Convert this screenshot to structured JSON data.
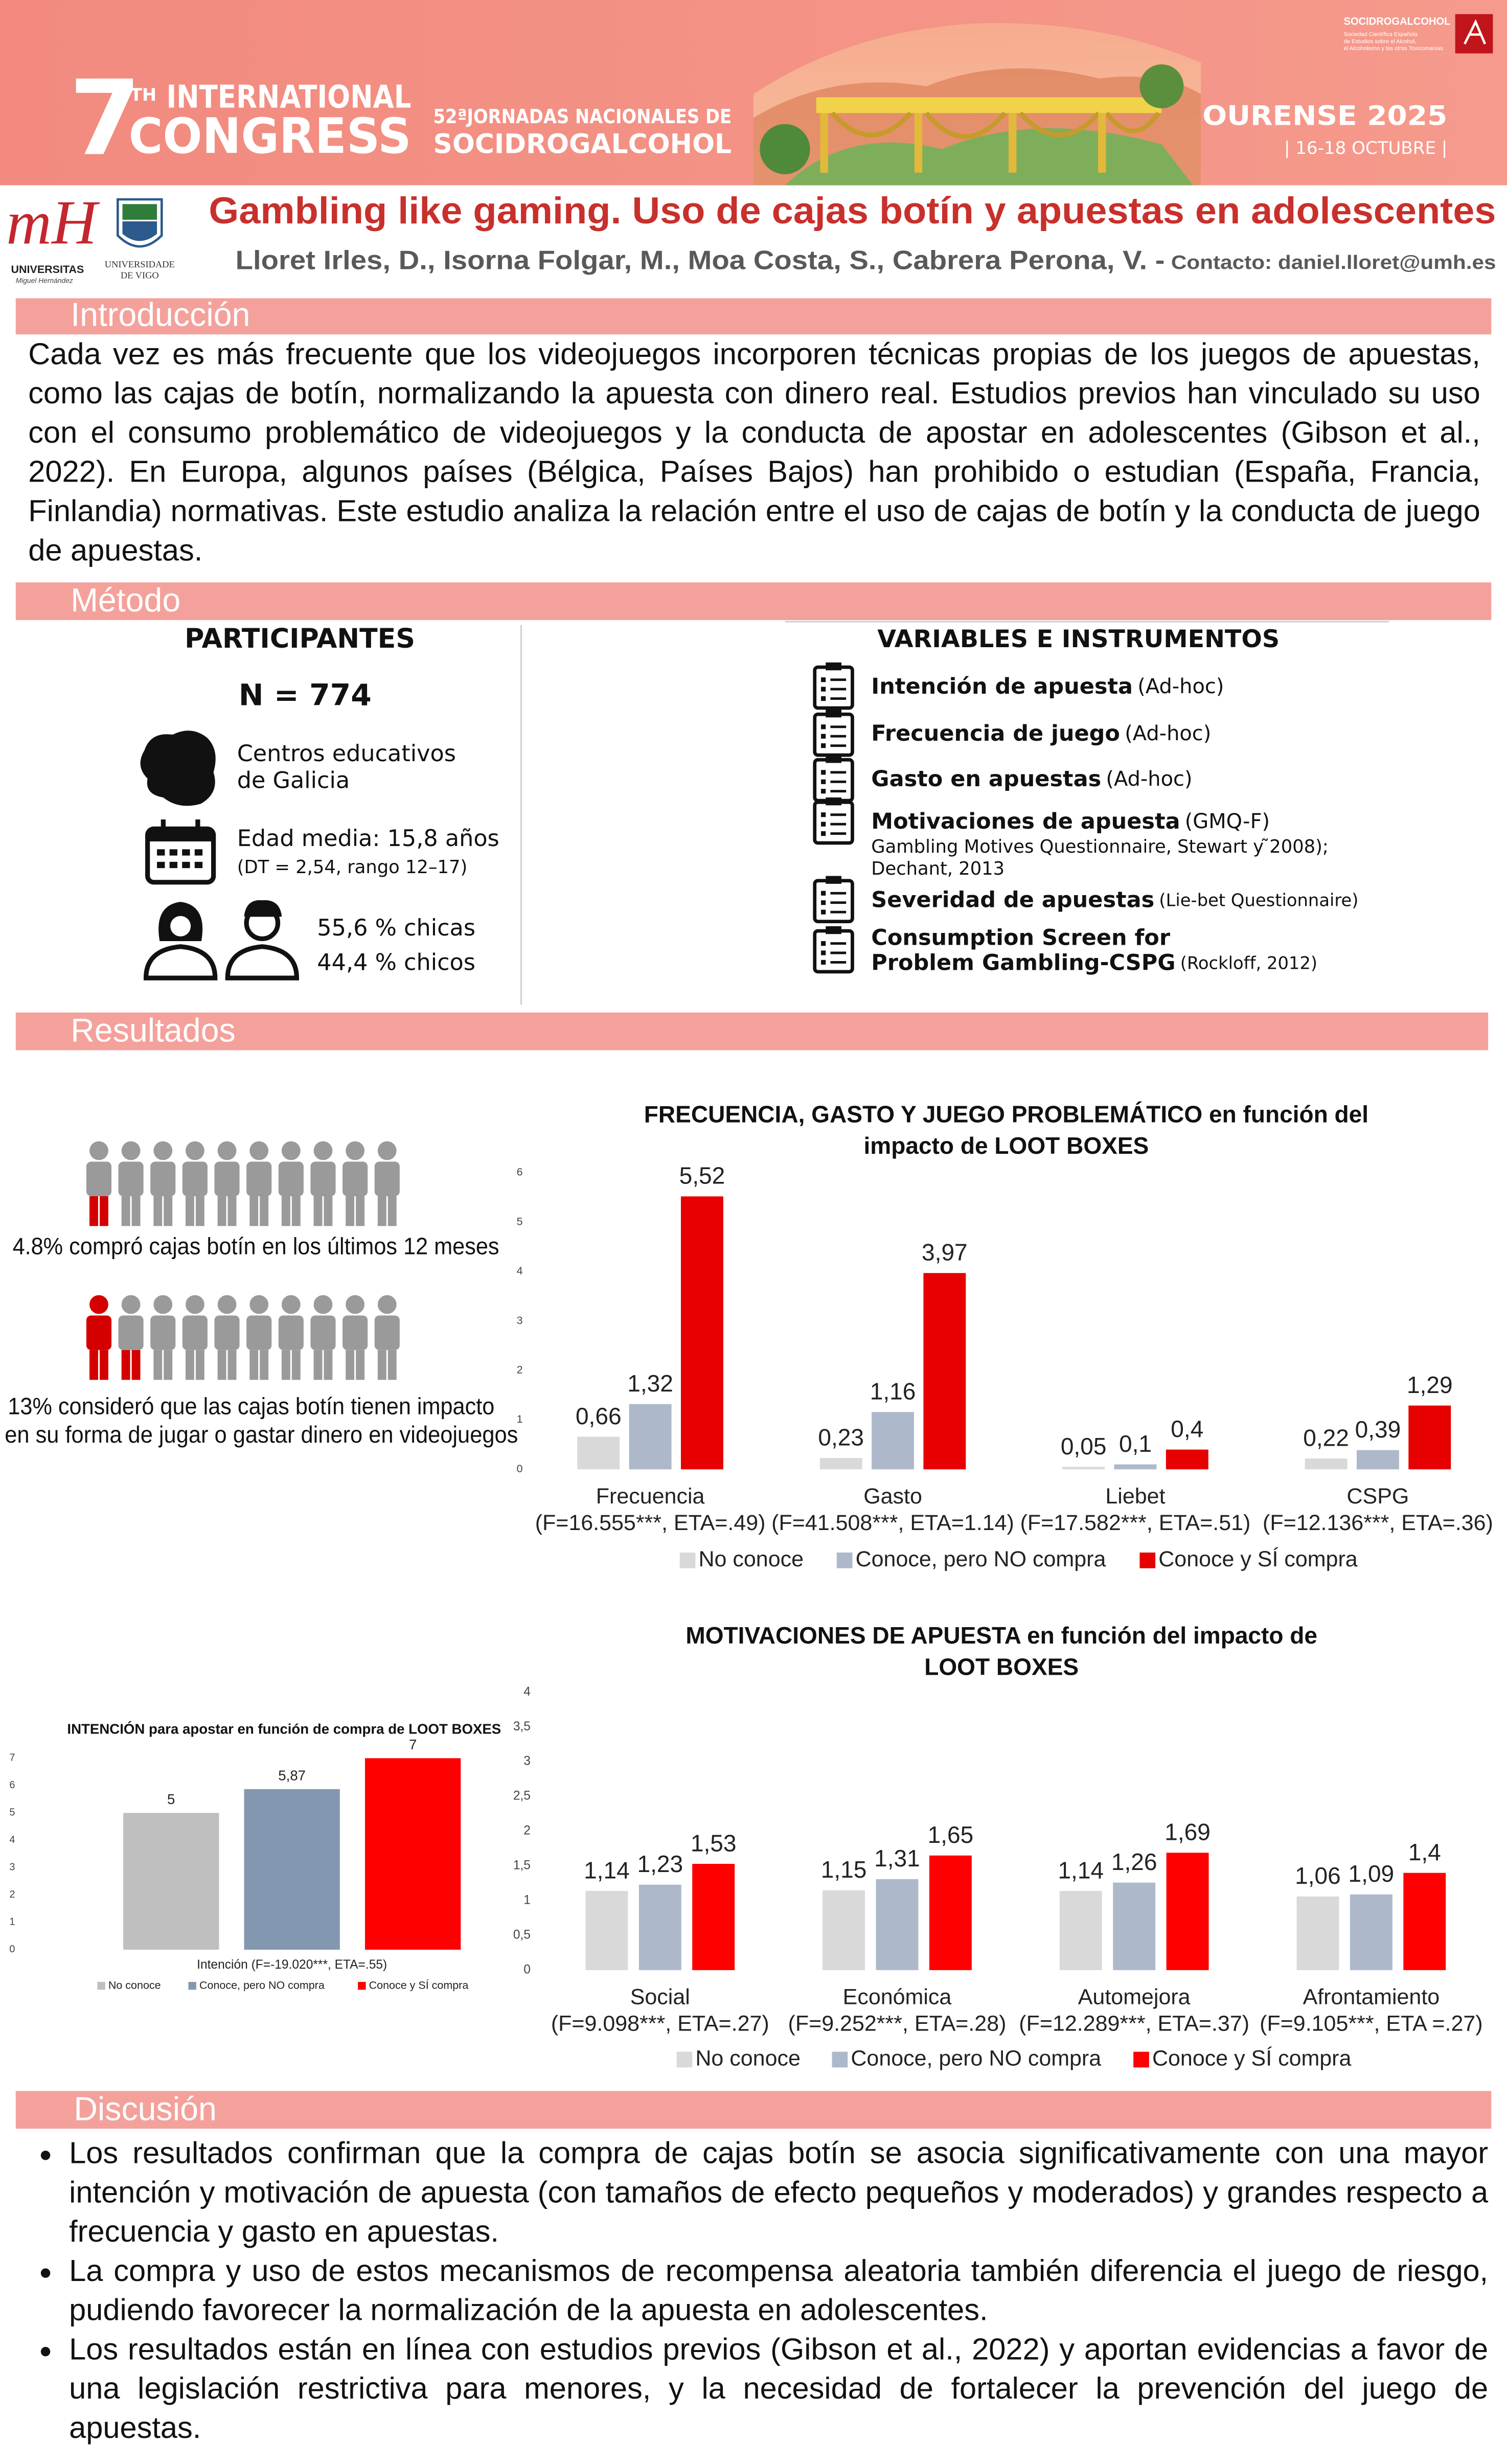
{
  "header": {
    "number": "7",
    "ordinal": "TH",
    "line1": "INTERNATIONAL",
    "line2": "CONGRESS",
    "jornadas": "52ªJORNADAS NACIONALES DE",
    "society": "SOCIDROGALCOHOL",
    "city": "OURENSE 2025",
    "dates": "| 16-18 OCTUBRE |",
    "logo_name": "SOCIDROGALCOHOL",
    "logo_text": [
      "Sociedad Científica Española",
      "de Estudios sobre el Alcohol,",
      "el Alcoholismo y las otras Toxicomanías"
    ]
  },
  "logos": {
    "umh_mark": "mH",
    "umh_name": "UNIVERSITAS",
    "umh_sub": "Miguel Hernández",
    "vigo_1": "UNIVERSIDADE",
    "vigo_2": "DE VIGO"
  },
  "title": "Gambling like gaming.  Uso de cajas botín y apuestas en adolescentes",
  "authors": "Lloret Irles, D., Isorna Folgar, M., Moa Costa, S.,  Cabrera Perona, V. -",
  "contact": "Contacto: daniel.lloret@umh.es",
  "sections": {
    "introduction": "Introducción",
    "method": "Método",
    "results": "Resultados",
    "discussion": "Discusión"
  },
  "introduction": "Cada vez es más frecuente que los videojuegos incorporen técnicas propias de los juegos de apuestas, como las cajas de botín, normalizando la apuesta con dinero real. Estudios previos han vinculado su uso con el consumo problemático de videojuegos y la conducta de apostar en adolescentes (Gibson et al., 2022). En Europa, algunos países (Bélgica, Países Bajos) han prohibido o estudian (España, Francia, Finlandia) normativas. Este estudio analiza la relación entre el uso de cajas de botín y la conducta de juego de apuestas.",
  "participants": {
    "heading": "PARTICIPANTES",
    "n": "N = 774",
    "centers": [
      "Centros educativos",
      "de Galicia"
    ],
    "age": "Edad media: 15,8 años",
    "age_detail": "(DT = 2,54, rango 12–17)",
    "girls": "55,6 % chicas",
    "boys": "44,4 % chicos"
  },
  "variables": {
    "heading": "VARIABLES E INSTRUMENTOS",
    "items": [
      {
        "name": "Intención de apuesta",
        "source": "(Ad-hoc)"
      },
      {
        "name": "Frecuencia de juego",
        "source": "(Ad-hoc)"
      },
      {
        "name": "Gasto en apuestas",
        "source": "(Ad-hoc)"
      },
      {
        "name": "Motivaciones de apuesta",
        "source": "(GMQ-F)",
        "detail": [
          "Gambling Motives Questionnaire, Stewart y  ̃2008);",
          "Dechant, 2013"
        ]
      },
      {
        "name": "Severidad de apuestas",
        "source": "(Lie-bet Questionnaire)"
      },
      {
        "name": [
          "Consumption Screen for",
          "Problem Gambling-CSPG"
        ],
        "source": "(Rockloff, 2012)"
      }
    ]
  },
  "infographic": {
    "purchase": "4.8% compró cajas botín en los últimos 12 meses",
    "impact": [
      "13% consideró que las cajas botín tienen impacto",
      "en su forma de jugar o gastar dinero en videojuegos"
    ]
  },
  "chart_data": [
    {
      "type": "bar",
      "title": [
        "FRECUENCIA, GASTO Y JUEGO PROBLEMÁTICO en función del",
        "impacto de LOOT BOXES"
      ],
      "categories": [
        "Frecuencia",
        "Gasto",
        "Liebet",
        "CSPG"
      ],
      "category_notes": [
        "(F=16.555***, ETA=.49)",
        "(F=41.508***, ETA=1.14)",
        "(F=17.582***, ETA=.51)",
        "(F=12.136***, ETA=.36)"
      ],
      "series": [
        {
          "name": "No conoce",
          "color": "#d9d9d9",
          "values": [
            0.66,
            0.23,
            0.05,
            0.22
          ],
          "value_labels": [
            "0,66",
            "0,23",
            "0,05",
            "0,22"
          ]
        },
        {
          "name": "Conoce, pero NO compra",
          "color": "#adb9ca",
          "values": [
            1.32,
            1.16,
            0.1,
            0.39
          ],
          "value_labels": [
            "1,32",
            "1,16",
            "0,1",
            "0,39"
          ]
        },
        {
          "name": "Conoce y SÍ compra",
          "color": "#e60000",
          "values": [
            5.52,
            3.97,
            0.4,
            1.29
          ],
          "value_labels": [
            "5,52",
            "3,97",
            "0,4",
            "1,29"
          ]
        }
      ],
      "ylim": [
        0,
        6
      ],
      "yticks": [
        0,
        1,
        2,
        3,
        4,
        5,
        6
      ],
      "grid": false,
      "legend": "bottom"
    },
    {
      "type": "bar",
      "title": "INTENCIÓN para apostar en función de compra de LOOT BOXES",
      "categories": [
        "Intención (F=-19.020***, ETA=.55)"
      ],
      "series": [
        {
          "name": "No conoce",
          "color": "#bfbfbf",
          "values": [
            5
          ],
          "value_labels": [
            "5"
          ]
        },
        {
          "name": "Conoce, pero NO compra",
          "color": "#8497b0",
          "values": [
            5.87
          ],
          "value_labels": [
            "5,87"
          ]
        },
        {
          "name": "Conoce y SÍ compra",
          "color": "#ff0000",
          "values": [
            7
          ],
          "value_labels": [
            "7"
          ]
        }
      ],
      "ylim": [
        0,
        7
      ],
      "yticks": [
        0,
        1,
        2,
        3,
        4,
        5,
        6,
        7
      ],
      "grid": false,
      "legend": "bottom"
    },
    {
      "type": "bar",
      "title": [
        "MOTIVACIONES DE APUESTA en función del impacto de",
        "LOOT BOXES"
      ],
      "categories": [
        "Social",
        "Económica",
        "Automejora",
        "Afrontamiento"
      ],
      "category_notes": [
        "(F=9.098***, ETA=.27)",
        "(F=9.252***, ETA=.28)",
        "(F=12.289***, ETA=.37)",
        "(F=9.105***, ETA =.27)"
      ],
      "series": [
        {
          "name": "No conoce",
          "color": "#d9d9d9",
          "values": [
            1.14,
            1.15,
            1.14,
            1.06
          ],
          "value_labels": [
            "1,14",
            "1,15",
            "1,14",
            "1,06"
          ]
        },
        {
          "name": "Conoce, pero NO compra",
          "color": "#adb9ca",
          "values": [
            1.23,
            1.31,
            1.26,
            1.09
          ],
          "value_labels": [
            "1,23",
            "1,31",
            "1,26",
            "1,09"
          ]
        },
        {
          "name": "Conoce y SÍ compra",
          "color": "#ff0000",
          "values": [
            1.53,
            1.65,
            1.69,
            1.4
          ],
          "value_labels": [
            "1,53",
            "1,65",
            "1,69",
            "1,4"
          ]
        }
      ],
      "ylim": [
        0,
        4
      ],
      "yticks": [
        0,
        {
          "value": 0.5,
          "label": "0,5"
        },
        1,
        {
          "value": 1.5,
          "label": "1,5"
        },
        2,
        {
          "value": 2.5,
          "label": "2,5"
        },
        3,
        {
          "value": 3.5,
          "label": "3,5"
        },
        4
      ],
      "grid": false,
      "legend": "bottom"
    }
  ],
  "discussion": [
    "Los resultados confirman que la compra de cajas botín se asocia significativamente con una mayor intención y motivación de apuesta (con tamaños de efecto pequeños y moderados) y grandes respecto a frecuencia y gasto en apuestas.",
    "La compra y uso de estos mecanismos de recompensa aleatoria también diferencia el juego de riesgo, pudiendo favorecer la normalización de la apuesta en adolescentes.",
    "Los resultados están en línea con estudios previos (Gibson et al., 2022) y aportan evidencias a favor de una legislación restrictiva para menores, y la necesidad de fortalecer la prevención del juego de apuestas."
  ]
}
